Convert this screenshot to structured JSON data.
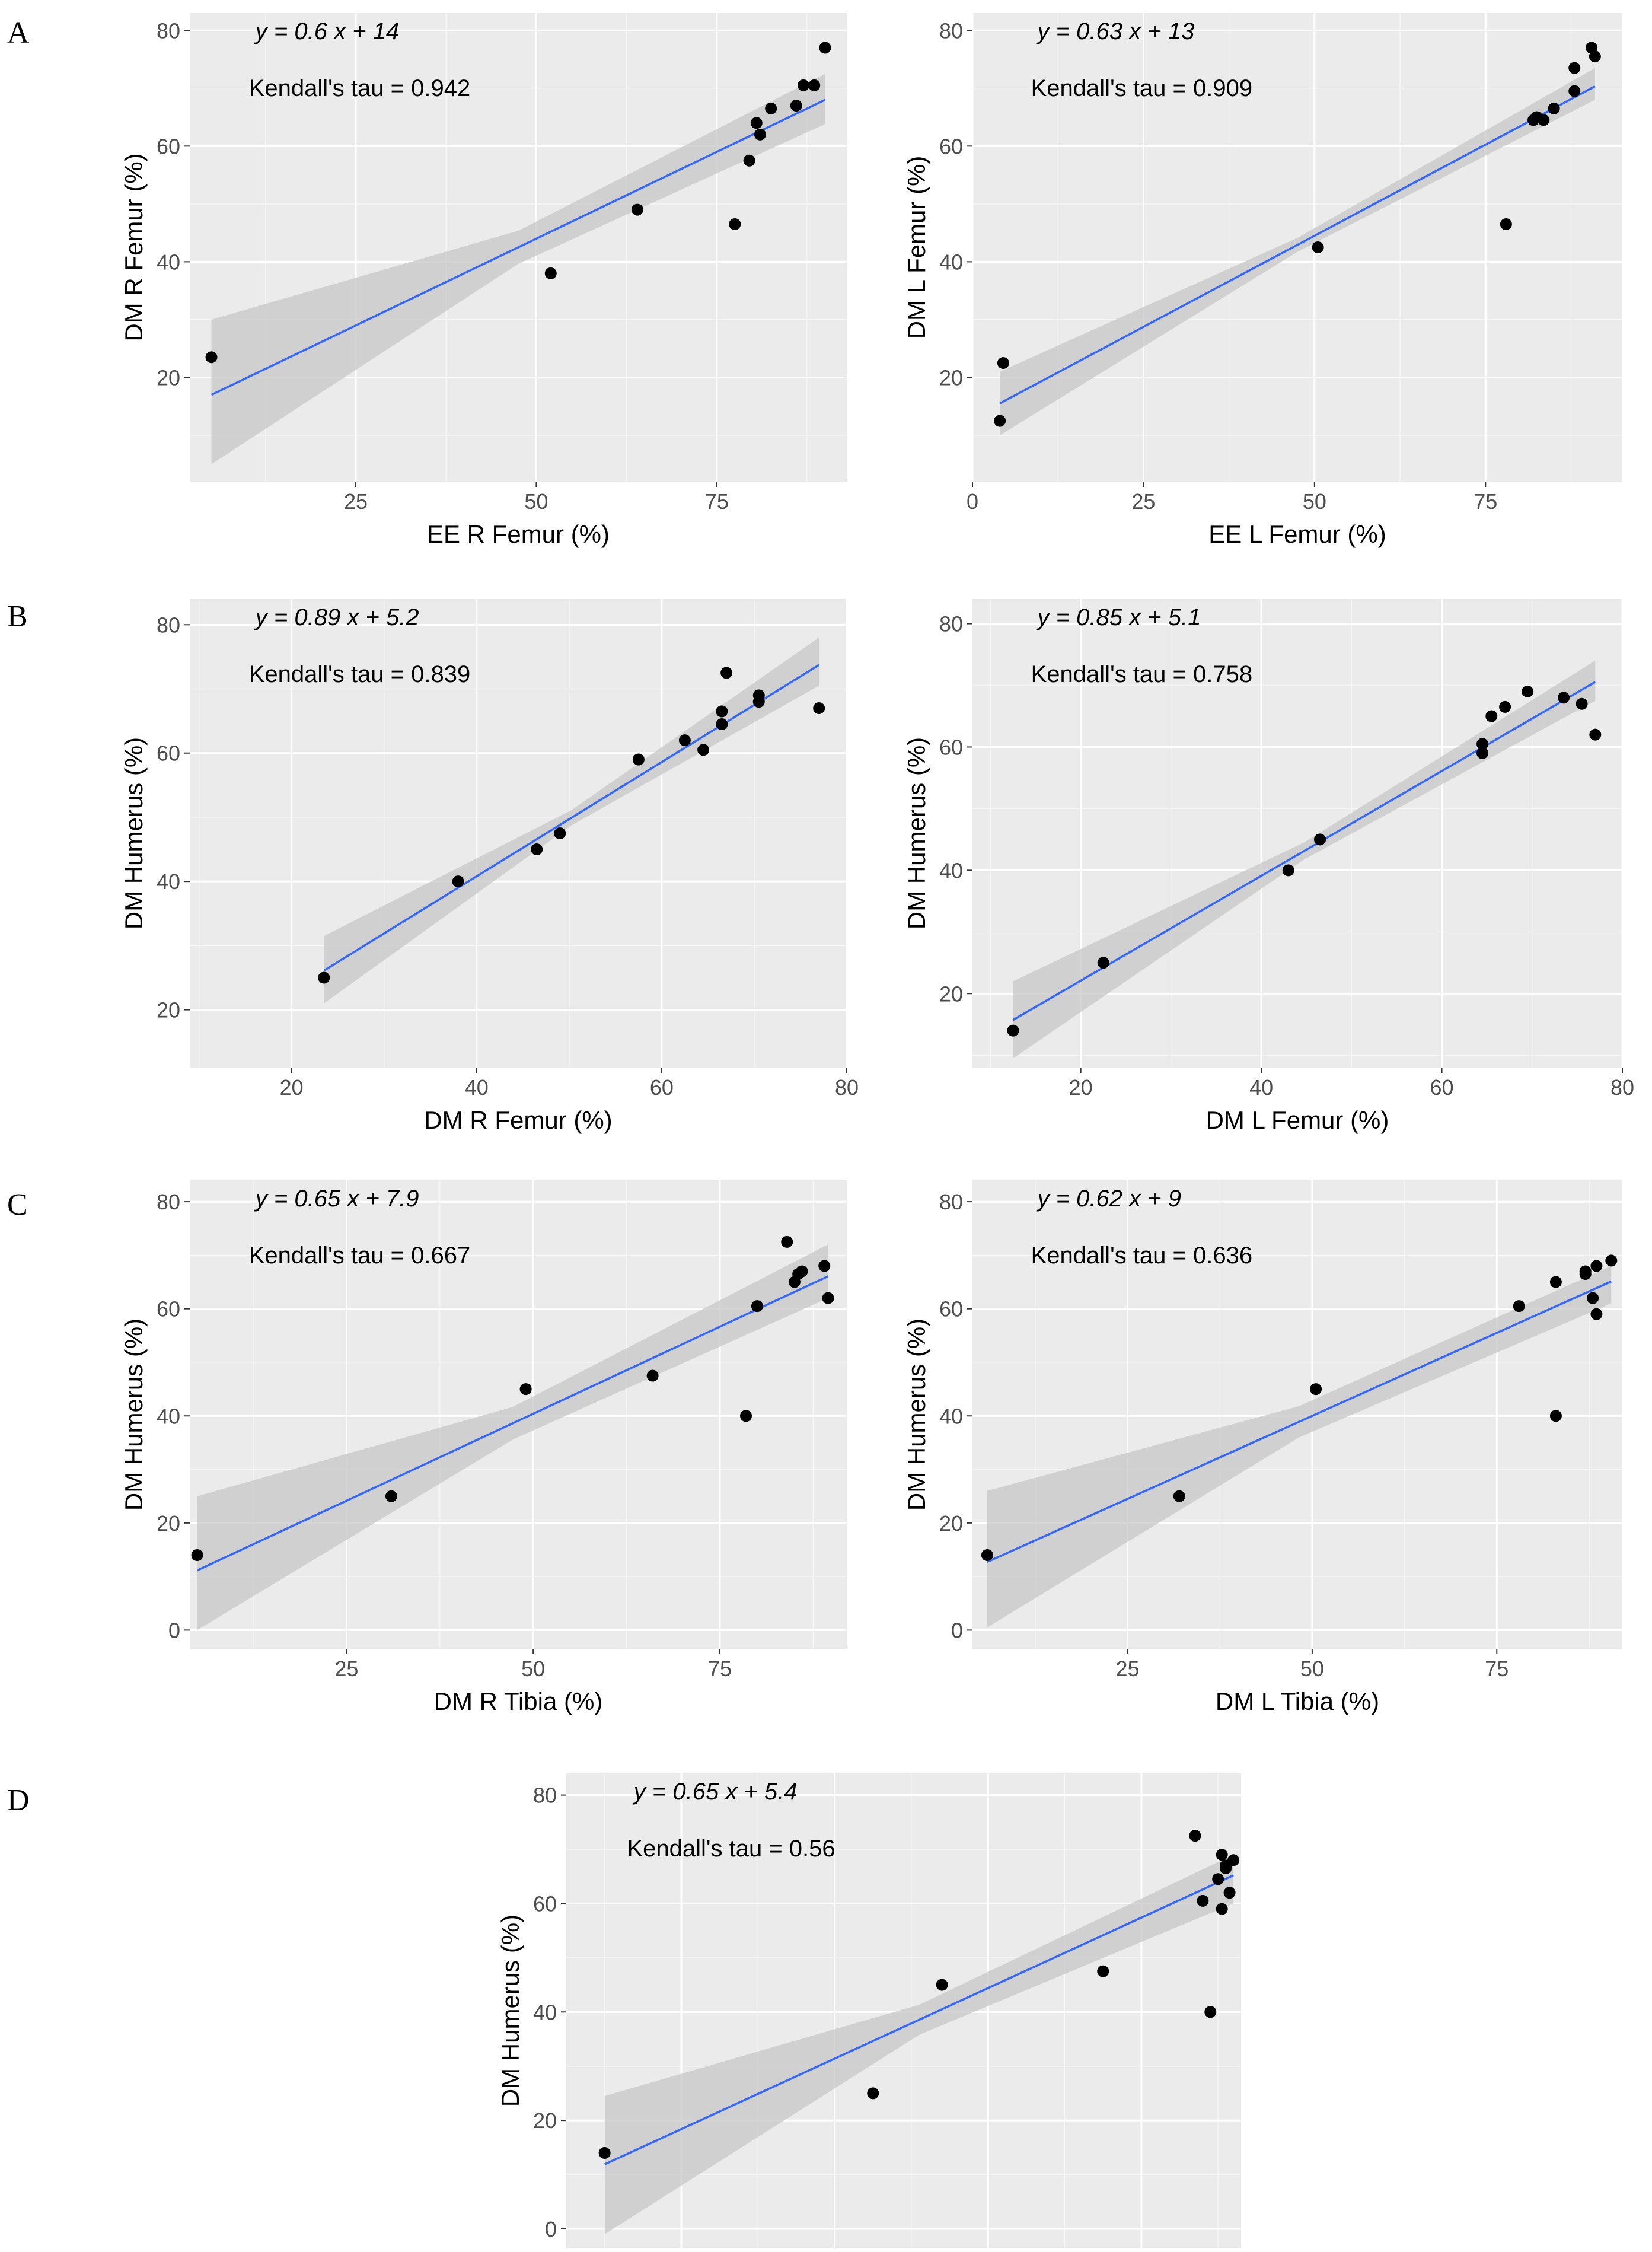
{
  "panel_labels": [
    "A",
    "B",
    "C",
    "D"
  ],
  "colors": {
    "panel_bg": "#ebebeb",
    "grid_major": "#ffffff",
    "grid_minor": "#f5f5f5",
    "ribbon": "#c7c7c7",
    "fit_line": "#3366ff",
    "point": "#000000",
    "tick_text": "#4d4d4d"
  },
  "chart_data": [
    {
      "type": "scatter",
      "panel": "A",
      "xlabel": "EE R Femur (%)",
      "ylabel": "DM R Femur (%)",
      "equation": "y = 0.6 x + 14",
      "kendall": "Kendall's tau = 0.942",
      "xlim": [
        2,
        93
      ],
      "ylim": [
        2,
        83
      ],
      "xticks": [
        25,
        50,
        75
      ],
      "yticks": [
        20,
        40,
        60,
        80
      ],
      "fit": {
        "slope": 0.6,
        "intercept": 14,
        "ci_low_start": 5,
        "ci_high_start": 30,
        "ci_low_end": 63.8,
        "ci_high_end": 72.5
      },
      "points": [
        [
          5,
          23.5
        ],
        [
          52,
          38
        ],
        [
          64,
          49
        ],
        [
          77.5,
          46.5
        ],
        [
          79.5,
          57.5
        ],
        [
          80.5,
          64
        ],
        [
          81,
          62
        ],
        [
          82.5,
          66.5
        ],
        [
          86,
          67
        ],
        [
          87,
          70.5
        ],
        [
          88.5,
          70.5
        ],
        [
          90,
          77
        ]
      ]
    },
    {
      "type": "scatter",
      "panel": "A",
      "xlabel": "EE L Femur (%)",
      "ylabel": "DM L Femur (%)",
      "equation": "y = 0.63 x + 13",
      "kendall": "Kendall's tau = 0.909",
      "xlim": [
        0,
        95
      ],
      "ylim": [
        2,
        83
      ],
      "xticks": [
        0,
        25,
        50,
        75
      ],
      "yticks": [
        20,
        40,
        60,
        80
      ],
      "fit": {
        "slope": 0.63,
        "intercept": 13,
        "ci_low_start": 10,
        "ci_high_start": 21,
        "ci_low_end": 68,
        "ci_high_end": 73.5
      },
      "points": [
        [
          4,
          12.5
        ],
        [
          4.5,
          22.5
        ],
        [
          50.5,
          42.5
        ],
        [
          78,
          46.5
        ],
        [
          82,
          64.5
        ],
        [
          82.5,
          65
        ],
        [
          83.5,
          64.5
        ],
        [
          85,
          66.5
        ],
        [
          88,
          69.5
        ],
        [
          88,
          73.5
        ],
        [
          90.5,
          77
        ],
        [
          91,
          75.5
        ]
      ]
    },
    {
      "type": "scatter",
      "panel": "B",
      "xlabel": "DM R Femur (%)",
      "ylabel": "DM Humerus (%)",
      "equation": "y = 0.89 x + 5.2",
      "kendall": "Kendall's tau = 0.839",
      "xlim": [
        9,
        80
      ],
      "ylim": [
        11,
        84
      ],
      "xticks": [
        20,
        40,
        60,
        80
      ],
      "yticks": [
        20,
        40,
        60,
        80
      ],
      "fit": {
        "slope": 0.89,
        "intercept": 5.2,
        "ci_low_start": 21,
        "ci_high_start": 31.5,
        "ci_low_end": 70.5,
        "ci_high_end": 78
      },
      "points": [
        [
          23.5,
          25
        ],
        [
          38,
          40
        ],
        [
          46.5,
          45
        ],
        [
          49,
          47.5
        ],
        [
          57.5,
          59
        ],
        [
          62.5,
          62
        ],
        [
          64.5,
          60.5
        ],
        [
          66.5,
          64.5
        ],
        [
          66.5,
          66.5
        ],
        [
          67,
          72.5
        ],
        [
          70.5,
          68
        ],
        [
          70.5,
          69
        ],
        [
          77,
          67
        ]
      ]
    },
    {
      "type": "scatter",
      "panel": "B",
      "xlabel": "DM L Femur (%)",
      "ylabel": "DM Humerus (%)",
      "equation": "y = 0.85 x + 5.1",
      "kendall": "Kendall's tau = 0.758",
      "xlim": [
        8,
        80
      ],
      "ylim": [
        8,
        84
      ],
      "xticks": [
        20,
        40,
        60,
        80
      ],
      "yticks": [
        20,
        40,
        60,
        80
      ],
      "fit": {
        "slope": 0.85,
        "intercept": 5.1,
        "ci_low_start": 9.5,
        "ci_high_start": 22,
        "ci_low_end": 67.5,
        "ci_high_end": 74
      },
      "points": [
        [
          12.5,
          14
        ],
        [
          22.5,
          25
        ],
        [
          43,
          40
        ],
        [
          46.5,
          45
        ],
        [
          64.5,
          59
        ],
        [
          64.5,
          60.5
        ],
        [
          65.5,
          65
        ],
        [
          67,
          66.5
        ],
        [
          69.5,
          69
        ],
        [
          73.5,
          68
        ],
        [
          75.5,
          67
        ],
        [
          77,
          62
        ]
      ]
    },
    {
      "type": "scatter",
      "panel": "C",
      "xlabel": "DM R Tibia (%)",
      "ylabel": "DM Humerus (%)",
      "equation": "y = 0.65 x + 7.9",
      "kendall": "Kendall's tau = 0.667",
      "xlim": [
        4,
        92
      ],
      "ylim": [
        -3.5,
        84
      ],
      "xticks": [
        25,
        50,
        75
      ],
      "yticks": [
        0,
        20,
        40,
        60,
        80
      ],
      "fit": {
        "slope": 0.65,
        "intercept": 7.9,
        "ci_low_start": 0,
        "ci_high_start": 25,
        "ci_low_end": 62,
        "ci_high_end": 72
      },
      "points": [
        [
          5,
          14
        ],
        [
          31,
          25
        ],
        [
          49,
          45
        ],
        [
          66,
          47.5
        ],
        [
          78.5,
          40
        ],
        [
          80,
          60.5
        ],
        [
          84,
          72.5
        ],
        [
          85,
          65
        ],
        [
          85.5,
          66.5
        ],
        [
          86,
          67
        ],
        [
          89,
          68
        ],
        [
          89.5,
          62
        ]
      ]
    },
    {
      "type": "scatter",
      "panel": "C",
      "xlabel": "DM L Tibia (%)",
      "ylabel": "DM Humerus (%)",
      "equation": "y = 0.62 x + 9",
      "kendall": "Kendall's tau = 0.636",
      "xlim": [
        4,
        92
      ],
      "ylim": [
        -3.5,
        84
      ],
      "xticks": [
        25,
        50,
        75
      ],
      "yticks": [
        0,
        20,
        40,
        60,
        80
      ],
      "fit": {
        "slope": 0.62,
        "intercept": 9,
        "ci_low_start": 0.5,
        "ci_high_start": 26,
        "ci_low_end": 61,
        "ci_high_end": 68
      },
      "points": [
        [
          6,
          14
        ],
        [
          32,
          25
        ],
        [
          50.5,
          45
        ],
        [
          78,
          60.5
        ],
        [
          83,
          40
        ],
        [
          83,
          65
        ],
        [
          87,
          66.5
        ],
        [
          87,
          67
        ],
        [
          88,
          62
        ],
        [
          88.5,
          59
        ],
        [
          88.5,
          68
        ],
        [
          90.5,
          69
        ]
      ]
    },
    {
      "type": "scatter",
      "panel": "D",
      "xlabel": "",
      "ylabel": "DM Humerus (%)",
      "equation": "y = 0.65 x + 5.4",
      "kendall": "Kendall's tau = 0.56",
      "xlim": [
        5,
        93
      ],
      "ylim": [
        -3.5,
        84
      ],
      "xticks": [],
      "yticks": [
        0,
        20,
        40,
        60,
        80
      ],
      "fit": {
        "slope": 0.65,
        "intercept": 5.4,
        "ci_low_start": -1,
        "ci_high_start": 24.5,
        "ci_low_end": 60,
        "ci_high_end": 69
      },
      "points": [
        [
          10,
          14
        ],
        [
          45,
          25
        ],
        [
          54,
          45
        ],
        [
          75,
          47.5
        ],
        [
          89,
          40
        ],
        [
          87,
          72.5
        ],
        [
          88,
          60.5
        ],
        [
          90.5,
          69
        ],
        [
          90,
          64.5
        ],
        [
          91,
          67
        ],
        [
          91,
          66.5
        ],
        [
          91.5,
          62
        ],
        [
          92,
          68
        ],
        [
          90.5,
          59
        ]
      ]
    }
  ]
}
